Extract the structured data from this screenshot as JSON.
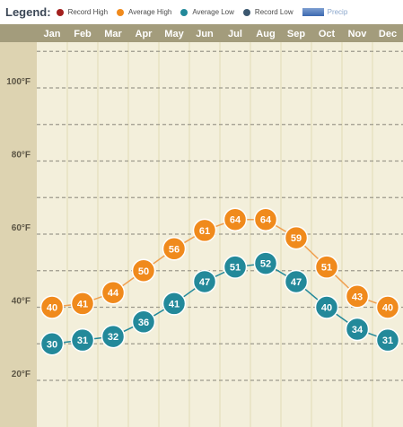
{
  "legend": {
    "title": "Legend:",
    "items": [
      {
        "label": "Record High",
        "color": "#a3201e",
        "icon": "red-dot-icon"
      },
      {
        "label": "Average High",
        "color": "#f08a1c",
        "icon": "orange-dot-icon"
      },
      {
        "label": "Average Low",
        "color": "#23899a",
        "icon": "teal-dot-icon"
      },
      {
        "label": "Record Low",
        "color": "#3c5870",
        "icon": "navy-dot-icon"
      }
    ],
    "precip": {
      "label": "Precip",
      "color": "#4a76b8",
      "icon": "precip-bar-icon"
    }
  },
  "chart_data": {
    "type": "line",
    "categories": [
      "Jan",
      "Feb",
      "Mar",
      "Apr",
      "May",
      "Jun",
      "Jul",
      "Aug",
      "Sep",
      "Oct",
      "Nov",
      "Dec"
    ],
    "series": [
      {
        "name": "Average High",
        "color": "#f08a1c",
        "line_color": "#f0a050",
        "values": [
          40,
          41,
          44,
          50,
          56,
          61,
          64,
          64,
          59,
          51,
          43,
          40
        ]
      },
      {
        "name": "Average Low",
        "color": "#23899a",
        "line_color": "#23899a",
        "values": [
          30,
          31,
          32,
          36,
          41,
          47,
          51,
          52,
          47,
          40,
          34,
          31
        ]
      }
    ],
    "y_ticks": [
      "100°F",
      "80°F",
      "60°F",
      "40°F",
      "20°F"
    ],
    "y_tick_values": [
      100,
      80,
      60,
      40,
      20
    ],
    "ylim": [
      16,
      124
    ],
    "grid": true,
    "legend_position": "top",
    "colors": {
      "header_bg": "#a39c7c",
      "header_text": "#ffffff",
      "axis_bg": "#ddd3b1",
      "plot_bg": "#f3efdb",
      "column_line": "#e0dbb4",
      "gridline": "#9d9a8c",
      "axis_text": "#5b5545"
    }
  }
}
